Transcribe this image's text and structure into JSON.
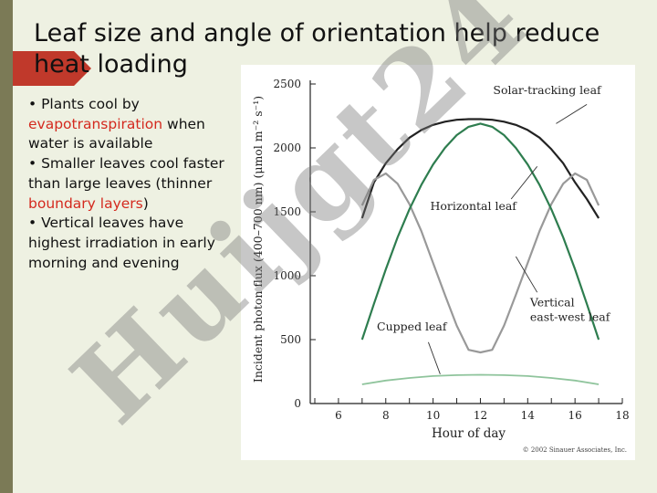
{
  "slide": {
    "title": "Leaf size and angle of orientation help reduce heat loading",
    "bullets": [
      {
        "parts": [
          {
            "text": "• Plants cool by ",
            "red": false
          },
          {
            "text": "evapotranspiration",
            "red": true
          },
          {
            "text": " when water is available",
            "red": false
          }
        ]
      },
      {
        "parts": [
          {
            "text": "• Smaller leaves cool faster than large leaves (thinner ",
            "red": false
          },
          {
            "text": "boundary layers",
            "red": true
          },
          {
            "text": ")",
            "red": false
          }
        ]
      },
      {
        "parts": [
          {
            "text": "• Vertical leaves have highest irradiation in early morning and evening",
            "red": false
          }
        ]
      }
    ],
    "watermark": "Huijgt24",
    "colors": {
      "accent_red": "#c0392b",
      "text_red": "#d42a1f",
      "sidebar": "#7b7a56",
      "background": "#eef1e2",
      "watermark": "#7a7a7a"
    }
  },
  "chart_data": {
    "type": "line",
    "xlabel": "Hour of day",
    "ylabel": "Incident photon flux (400–700 nm) (μmol m⁻² s⁻¹)",
    "xlim": [
      5,
      18
    ],
    "ylim": [
      0,
      2500
    ],
    "xticks": [
      6,
      8,
      10,
      12,
      14,
      16,
      18
    ],
    "yticks": [
      0,
      500,
      1000,
      1500,
      2000,
      2500
    ],
    "grid": false,
    "copyright": "© 2002 Sinauer Associates, Inc.",
    "series": [
      {
        "name": "Solar-tracking leaf",
        "color": "#222222",
        "x": [
          7,
          7.5,
          8,
          8.5,
          9,
          9.5,
          10,
          10.5,
          11,
          11.5,
          12,
          12.5,
          13,
          13.5,
          14,
          14.5,
          15,
          15.5,
          16,
          16.5,
          17
        ],
        "y": [
          1450,
          1730,
          1880,
          1990,
          2080,
          2140,
          2180,
          2205,
          2220,
          2225,
          2225,
          2220,
          2205,
          2180,
          2140,
          2080,
          1990,
          1880,
          1730,
          1600,
          1450
        ]
      },
      {
        "name": "Horizontal leaf",
        "color": "#999999",
        "x": [
          7,
          7.5,
          8,
          8.5,
          9,
          9.5,
          10,
          10.5,
          11,
          11.5,
          12,
          12.5,
          13,
          13.5,
          14,
          14.5,
          15,
          15.5,
          16,
          16.5,
          17
        ],
        "y": [
          1550,
          1750,
          1800,
          1720,
          1560,
          1350,
          1100,
          850,
          610,
          420,
          400,
          420,
          610,
          850,
          1100,
          1350,
          1560,
          1720,
          1800,
          1750,
          1550
        ]
      },
      {
        "name": "Vertical east-west leaf",
        "color": "#2e7d4f",
        "x": [
          7,
          7.5,
          8,
          8.5,
          9,
          9.5,
          10,
          10.5,
          11,
          11.5,
          12,
          12.5,
          13,
          13.5,
          14,
          14.5,
          15,
          15.5,
          16,
          16.5,
          17
        ],
        "y": [
          500,
          780,
          1050,
          1300,
          1520,
          1710,
          1870,
          2000,
          2100,
          2165,
          2190,
          2165,
          2100,
          2000,
          1870,
          1710,
          1520,
          1300,
          1050,
          780,
          500
        ]
      },
      {
        "name": "Cupped leaf",
        "color": "#8fc49c",
        "x": [
          7,
          8,
          9,
          10,
          11,
          12,
          13,
          14,
          15,
          16,
          17
        ],
        "y": [
          150,
          180,
          200,
          215,
          222,
          225,
          222,
          215,
          200,
          180,
          150
        ]
      }
    ],
    "annotations": [
      {
        "lines": [
          "Solar-tracking leaf"
        ],
        "x": 17.1,
        "y": 2420,
        "anchor": "end",
        "pointer": [
          [
            16.5,
            2340
          ],
          [
            15.2,
            2190
          ]
        ]
      },
      {
        "lines": [
          "Horizontal leaf"
        ],
        "x": 11.7,
        "y": 1515,
        "anchor": "middle",
        "pointer": [
          [
            13.3,
            1600
          ],
          [
            14.4,
            1855
          ]
        ]
      },
      {
        "lines": [
          "Vertical",
          "east-west leaf"
        ],
        "x": 14.1,
        "y": 760,
        "anchor": "start",
        "pointer": [
          [
            14.4,
            870
          ],
          [
            13.5,
            1150
          ]
        ]
      },
      {
        "lines": [
          "Cupped leaf"
        ],
        "x": 9.1,
        "y": 570,
        "anchor": "middle",
        "pointer": [
          [
            9.8,
            480
          ],
          [
            10.3,
            230
          ]
        ]
      }
    ]
  }
}
